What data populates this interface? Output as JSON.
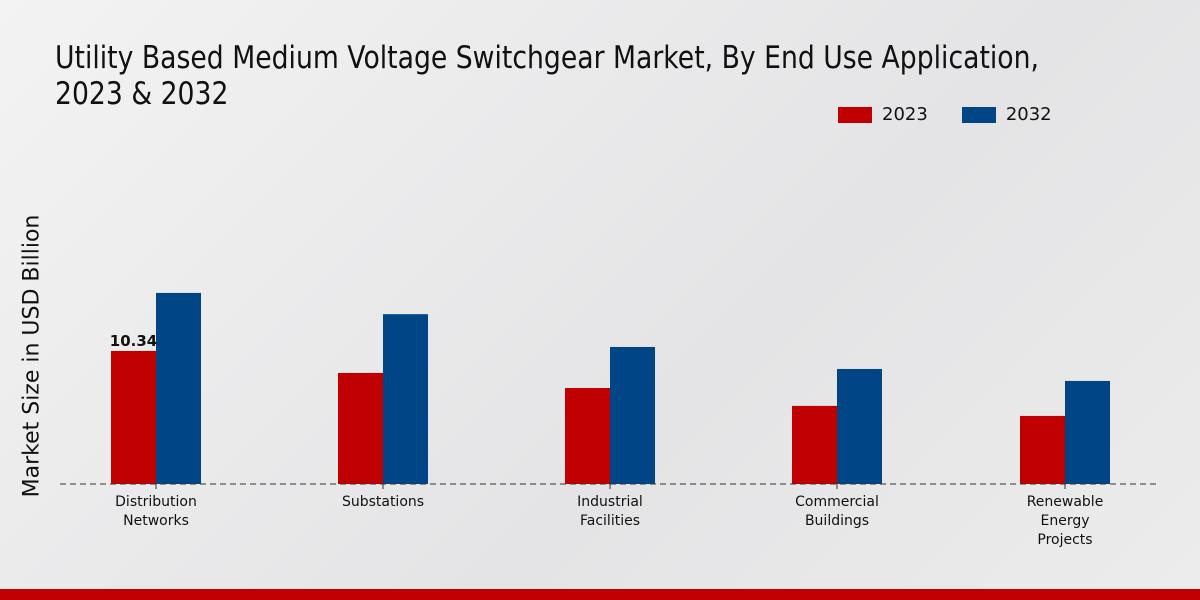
{
  "title": "Utility Based Medium Voltage Switchgear Market, By End Use Application, 2023 & 2032",
  "title_line1": "Utility Based Medium Voltage Switchgear Market, By End Use Application,",
  "title_line2": "2023 & 2032",
  "colors": {
    "2023": "#c00000",
    "2032": "#004687",
    "footer": "#c00000"
  },
  "chart_data": {
    "type": "bar",
    "title": "Utility Based Medium Voltage Switchgear Market, By End Use Application, 2023 & 2032",
    "xlabel": "",
    "ylabel": "Market Size in USD Billion",
    "ylim": [
      0,
      30
    ],
    "grid": false,
    "legend_position": "top-right",
    "categories": [
      [
        "Distribution",
        "Networks"
      ],
      [
        "Substations"
      ],
      [
        "Industrial",
        "Facilities"
      ],
      [
        "Commercial",
        "Buildings"
      ],
      [
        "Renewable",
        "Energy",
        "Projects"
      ]
    ],
    "series": [
      {
        "name": "2023",
        "values": [
          10.34,
          8.63,
          7.46,
          6.07,
          5.29
        ]
      },
      {
        "name": "2032",
        "values": [
          14.85,
          13.2,
          10.65,
          8.94,
          8.01
        ]
      }
    ],
    "annotations": [
      {
        "series": "2023",
        "category_index": 0,
        "text": "10.34"
      }
    ]
  }
}
